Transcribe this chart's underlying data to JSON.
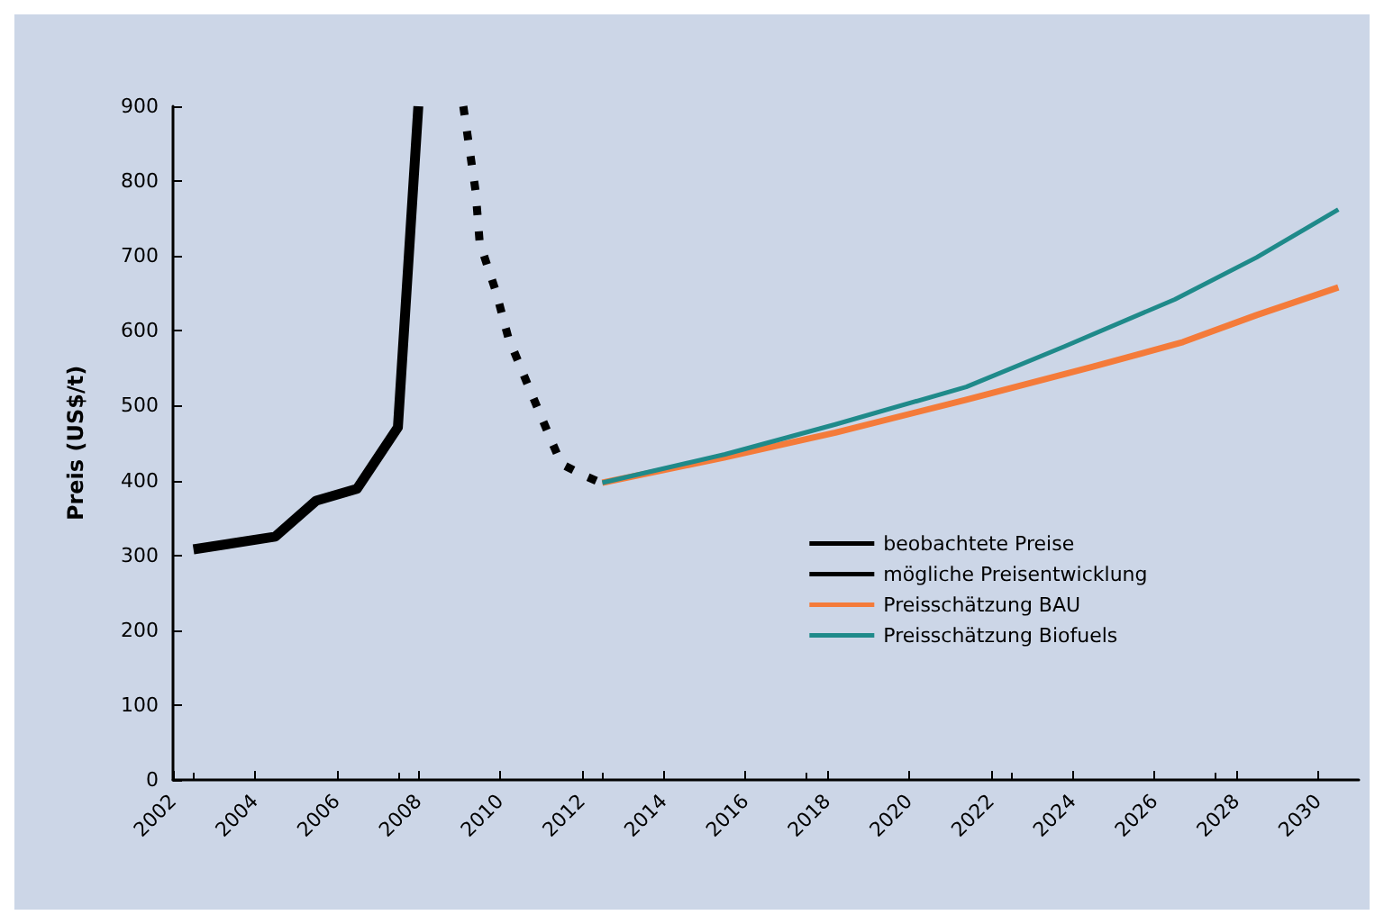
{
  "chart_data": {
    "type": "line",
    "ylabel": "Preis (US$/t)",
    "xlim": [
      2002,
      2031
    ],
    "xticks": [
      2002,
      2004,
      2006,
      2008,
      2010,
      2012,
      2014,
      2016,
      2018,
      2020,
      2022,
      2024,
      2026,
      2028,
      2030
    ],
    "ylim": [
      0,
      900
    ],
    "yticks": [
      0,
      100,
      200,
      300,
      400,
      500,
      600,
      700,
      800,
      900
    ],
    "grid": false,
    "legend": "right",
    "marker": "none",
    "line_style": "solid",
    "series": [
      {
        "name": "beobachtete Preise",
        "color": "#000000",
        "x": [
          2002.5,
          2004.5,
          2005.5,
          2006.5,
          2007.5,
          2008
        ],
        "values": [
          308,
          325,
          373,
          389,
          471,
          900
        ]
      },
      {
        "name": "mögliche Preisentwicklung",
        "color": "#000000",
        "line_style": "dashed",
        "x": [
          2009.1,
          2009.4,
          2009.5,
          2009.9,
          2010.2,
          2010.7,
          2011.2,
          2011.5,
          2012,
          2012.5
        ],
        "values": [
          900,
          787,
          718,
          652,
          591,
          525,
          460,
          422,
          408,
          396
        ]
      },
      {
        "name": "Preisschätzung BAU",
        "color": "#f47b3a",
        "x": [
          2012.5,
          2015.5,
          2018.2,
          2021.4,
          2024.5,
          2026.7,
          2028.5,
          2030.5
        ],
        "values": [
          397,
          431,
          464,
          508,
          552,
          585,
          621,
          658
        ]
      },
      {
        "name": "Preisschätzung Biofuels",
        "color": "#1f8a8a",
        "x": [
          2012.5,
          2015.5,
          2018.2,
          2021.4,
          2023.8,
          2026.5,
          2028.5,
          2030.5
        ],
        "values": [
          397,
          435,
          475,
          525,
          579,
          642,
          698,
          762
        ]
      }
    ]
  }
}
